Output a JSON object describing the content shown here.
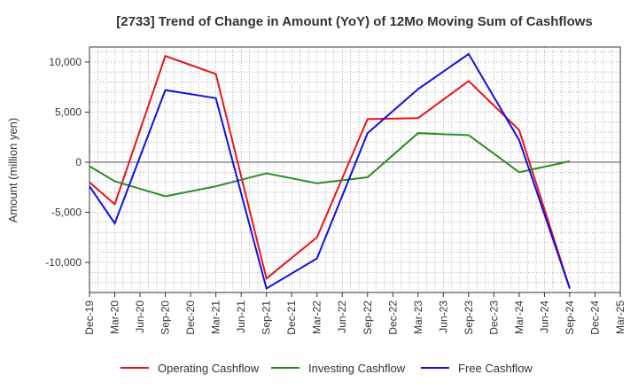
{
  "chart_data": {
    "type": "line",
    "title": "[2733]  Trend of Change in Amount (YoY) of 12Mo Moving Sum of Cashflows",
    "xlabel": "",
    "ylabel": "Amount (million yen)",
    "ylim": [
      -13000,
      11500
    ],
    "yticks": [
      10000,
      5000,
      0,
      -5000,
      -10000
    ],
    "ytick_labels": [
      "10,000",
      "5,000",
      "0",
      "-5,000",
      "-10,000"
    ],
    "categories": [
      "Dec-19",
      "Mar-20",
      "Jun-20",
      "Sep-20",
      "Dec-20",
      "Mar-21",
      "Jun-21",
      "Sep-21",
      "Dec-21",
      "Mar-22",
      "Jun-22",
      "Sep-22",
      "Dec-22",
      "Mar-23",
      "Jun-23",
      "Sep-23",
      "Dec-23",
      "Mar-24",
      "Jun-24",
      "Sep-24",
      "Dec-24",
      "Mar-25"
    ],
    "grid": true,
    "legend_position": "bottom",
    "series": [
      {
        "name": "Operating Cashflow",
        "color": "#e8141a",
        "values": [
          -2000,
          -4200,
          null,
          10600,
          null,
          8800,
          null,
          -11600,
          null,
          -7500,
          null,
          4300,
          null,
          4400,
          null,
          8100,
          null,
          3200,
          null,
          -12600,
          null,
          null
        ]
      },
      {
        "name": "Investing Cashflow",
        "color": "#2a8a2a",
        "values": [
          -400,
          -1900,
          null,
          -3400,
          null,
          -2400,
          null,
          -1100,
          null,
          -2100,
          null,
          -1500,
          null,
          2900,
          null,
          2700,
          null,
          -1000,
          null,
          100,
          null,
          null
        ]
      },
      {
        "name": "Free Cashflow",
        "color": "#1010e0",
        "values": [
          -2400,
          -6100,
          null,
          7200,
          null,
          6400,
          null,
          -12600,
          null,
          -9600,
          null,
          2900,
          null,
          7300,
          null,
          10800,
          null,
          2200,
          null,
          -12600,
          null,
          null
        ]
      }
    ]
  }
}
